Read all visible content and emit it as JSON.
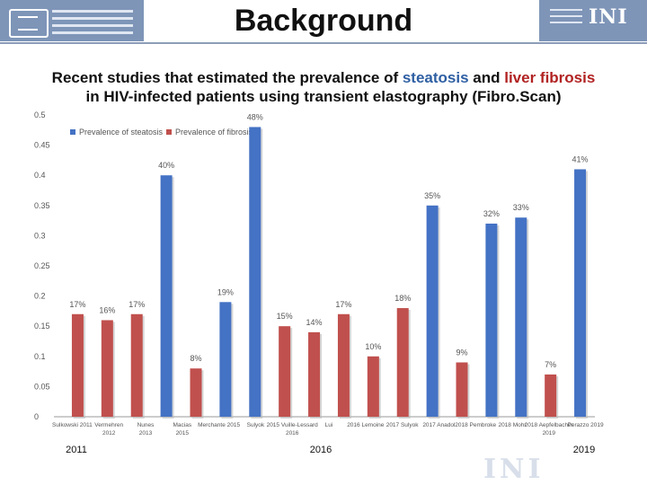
{
  "slide": {
    "title": "Background",
    "subtitle_line1_a": "Recent studies that estimated the prevalence of ",
    "subtitle_steatosis": "steatosis",
    "subtitle_line1_b": " and ",
    "subtitle_fibrosis": "liver fibrosis",
    "subtitle_line2": "in HIV-infected patients using transient elastography (Fibro.Scan)",
    "timeline": [
      "2011",
      "2016",
      "2019"
    ]
  },
  "chart_data": {
    "type": "bar",
    "ylim": [
      0,
      0.5
    ],
    "y_ticks": [
      "0",
      "0.05",
      "0.1",
      "0.15",
      "0.2",
      "0.25",
      "0.3",
      "0.35",
      "0.4",
      "0.45",
      "0.5"
    ],
    "legend_position": "top-left",
    "series": [
      {
        "name": "Prevalence of steatosis",
        "color": "#4472c4"
      },
      {
        "name": "Prevalence of fibrosis",
        "color": "#c0504d"
      }
    ],
    "bars": [
      {
        "series": 1,
        "value": 0.17,
        "label": "17%"
      },
      {
        "series": 1,
        "value": 0.16,
        "label": "16%"
      },
      {
        "series": 1,
        "value": 0.17,
        "label": "17%"
      },
      {
        "series": 0,
        "value": 0.4,
        "label": "40%"
      },
      {
        "series": 1,
        "value": 0.08,
        "label": "8%"
      },
      {
        "series": 0,
        "value": 0.19,
        "label": "19%"
      },
      {
        "series": 0,
        "value": 0.48,
        "label": "48%"
      },
      {
        "series": 1,
        "value": 0.15,
        "label": "15%"
      },
      {
        "series": 1,
        "value": 0.14,
        "label": "14%"
      },
      {
        "series": 1,
        "value": 0.17,
        "label": "17%"
      },
      {
        "series": 1,
        "value": 0.1,
        "label": "10%"
      },
      {
        "series": 1,
        "value": 0.18,
        "label": "18%"
      },
      {
        "series": 0,
        "value": 0.35,
        "label": "35%"
      },
      {
        "series": 1,
        "value": 0.09,
        "label": "9%"
      },
      {
        "series": 0,
        "value": 0.32,
        "label": "32%"
      },
      {
        "series": 0,
        "value": 0.33,
        "label": "33%"
      },
      {
        "series": 1,
        "value": 0.07,
        "label": "7%"
      },
      {
        "series": 0,
        "value": 0.41,
        "label": "41%"
      }
    ],
    "x_tick_labels": [
      {
        "text": "Sulkowski 2011",
        "lines": [
          "Sulkowski  2011"
        ]
      },
      {
        "text": "Vermehren 2012",
        "lines": [
          "Vermehren",
          "2012"
        ]
      },
      {
        "text": "Nunes 2013",
        "lines": [
          "Nunes",
          "2013"
        ]
      },
      {
        "text": "Macias 2015",
        "lines": [
          "Macias",
          "2015"
        ]
      },
      {
        "text": "Merchante 2015",
        "lines": [
          "Merchante 2015"
        ]
      },
      {
        "text": "Sulyok 2015",
        "lines": [
          "Sulyok"
        ]
      },
      {
        "text": "2015 Vuille-Lessard 2016",
        "lines": [
          "2015  Vuille-Lessard",
          "2016"
        ]
      },
      {
        "text": "Lui",
        "lines": [
          "Lui"
        ]
      },
      {
        "text": "2016 Lemoine",
        "lines": [
          "2016 Lemoine"
        ]
      },
      {
        "text": "2017 Sulyok",
        "lines": [
          "2017 Sulyok"
        ]
      },
      {
        "text": "2017 Anadol",
        "lines": [
          "2017 Anadol"
        ]
      },
      {
        "text": "2018 Pembroke",
        "lines": [
          "2018 Pembroke"
        ]
      },
      {
        "text": "2018 Mohr",
        "lines": [
          "2018 Mohr"
        ]
      },
      {
        "text": "2018 Aepfelbacher 2019",
        "lines": [
          "2018  Aepfelbacher",
          "2019"
        ]
      },
      {
        "text": "Perazzo 2019",
        "lines": [
          "Perazzo 2019"
        ]
      }
    ]
  }
}
